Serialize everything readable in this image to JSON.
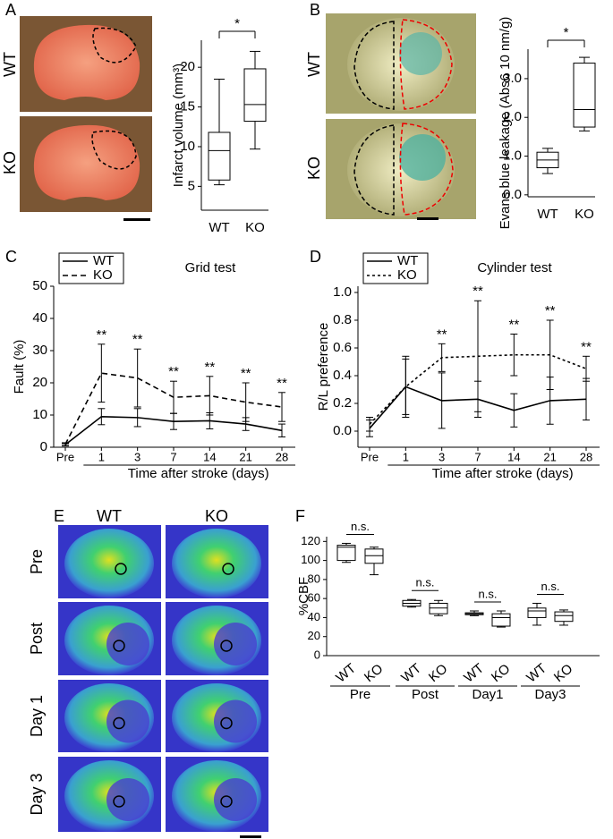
{
  "panels": [
    "A",
    "B",
    "C",
    "D",
    "E",
    "F"
  ],
  "images": {
    "A": [
      "WT",
      "KO"
    ],
    "B": [
      "WT",
      "KO"
    ],
    "E": {
      "columns": [
        "WT",
        "KO"
      ],
      "rows": [
        "Pre",
        "Post",
        "Day 1",
        "Day 3"
      ]
    }
  },
  "chart_data": [
    {
      "type": "box",
      "ylabel": "Infarct volume (mm³)",
      "categories": [
        "WT",
        "KO"
      ],
      "min": [
        5.2,
        9.7
      ],
      "q1": [
        5.8,
        13.2
      ],
      "median": [
        9.5,
        15.3
      ],
      "q3": [
        11.8,
        19.8
      ],
      "max": [
        18.5,
        22
      ],
      "ylim": [
        2,
        23.4
      ],
      "yticks": [
        5,
        10,
        15,
        20
      ],
      "annotations": [
        "*"
      ]
    },
    {
      "type": "box",
      "ylabel": "Evans  blue leakage (Abs6 10 nm/g)",
      "categories": [
        "WT",
        "KO"
      ],
      "min": [
        0.55,
        1.65
      ],
      "q1": [
        0.7,
        1.75
      ],
      "median": [
        0.9,
        2.2
      ],
      "q3": [
        1.1,
        3.4
      ],
      "max": [
        1.2,
        3.55
      ],
      "ylim": [
        -0.05,
        3.76
      ],
      "yticks": [
        {
          "value": 0,
          "label": "0.0"
        },
        {
          "value": 1,
          "label": "1.0"
        },
        {
          "value": 2,
          "label": "2.0"
        },
        {
          "value": 3,
          "label": "3.0"
        }
      ],
      "annotations": [
        "*"
      ]
    },
    {
      "type": "line",
      "title": "Grid test",
      "ylabel": "Fault (%)",
      "xlabel": "Time after stroke (days)",
      "categories": [
        "Pre",
        "1",
        "3",
        "7",
        "14",
        "21",
        "28"
      ],
      "series": [
        {
          "name": "WT",
          "color": "#000000",
          "dash": "solid",
          "values": [
            0.8,
            9.5,
            9.2,
            8.0,
            8.2,
            7.2,
            5.2
          ],
          "errors": [
            0.3,
            2.5,
            2.8,
            2.5,
            2.5,
            2.0,
            2.0
          ]
        },
        {
          "name": "KO",
          "color": "#000000",
          "dash": "dashed",
          "values": [
            0.9,
            23,
            21.5,
            15.5,
            16,
            14,
            12.5
          ],
          "errors": [
            0.5,
            9,
            9,
            5,
            6,
            6,
            4.5
          ]
        }
      ],
      "ylim": [
        0,
        50
      ],
      "yticks": [
        0,
        10,
        20,
        30,
        40,
        50
      ],
      "annotations": [
        null,
        "**",
        "**",
        "**",
        "**",
        "**",
        "**"
      ],
      "legend": "upper-left"
    },
    {
      "type": "line",
      "title": "Cylinder test",
      "ylabel": "R/L preference",
      "xlabel": "Time after stroke (days)",
      "categories": [
        "Pre",
        "1",
        "3",
        "7",
        "14",
        "21",
        "28"
      ],
      "series": [
        {
          "name": "WT",
          "color": "#000000",
          "dash": "solid",
          "values": [
            0.02,
            0.32,
            0.22,
            0.23,
            0.15,
            0.22,
            0.23
          ],
          "errors": [
            0.06,
            0.22,
            0.2,
            0.13,
            0.12,
            0.17,
            0.15
          ]
        },
        {
          "name": "KO",
          "color": "#000000",
          "dash": "dotted",
          "values": [
            0.05,
            0.32,
            0.53,
            0.54,
            0.55,
            0.55,
            0.45
          ],
          "errors": [
            0.05,
            0.2,
            0.1,
            0.4,
            0.15,
            0.25,
            0.09
          ]
        }
      ],
      "ylim": [
        -0.116,
        1.045
      ],
      "yticks": [
        {
          "value": 0,
          "label": "0.0"
        },
        0.2,
        0.4,
        0.6,
        0.8,
        {
          "value": 1,
          "label": "1.0"
        }
      ],
      "annotations": [
        null,
        null,
        "**",
        "**",
        "**",
        "**",
        "**"
      ],
      "legend": "upper-left"
    },
    {
      "type": "box",
      "ylabel": "%CBF",
      "categories": [
        "WT",
        "KO",
        "WT",
        "KO",
        "WT",
        "KO",
        "WT",
        "KO"
      ],
      "groups": [
        "Pre",
        "Post",
        "Day1",
        "Day3"
      ],
      "min": [
        98,
        85,
        51,
        42,
        42,
        30,
        32,
        32
      ],
      "q1": [
        100,
        97,
        52,
        44,
        43,
        31,
        40,
        36
      ],
      "median": [
        114,
        105,
        55,
        50,
        44,
        40,
        47,
        42
      ],
      "q3": [
        116,
        112,
        58,
        55,
        45,
        44,
        50,
        46
      ],
      "max": [
        118,
        114,
        59,
        58,
        47,
        47,
        55,
        48
      ],
      "ylim": [
        0,
        125
      ],
      "yticks": [
        0,
        20,
        40,
        60,
        80,
        100,
        120
      ],
      "annotations": [
        "n.s.",
        "n.s.",
        "n.s.",
        "n.s."
      ]
    }
  ]
}
